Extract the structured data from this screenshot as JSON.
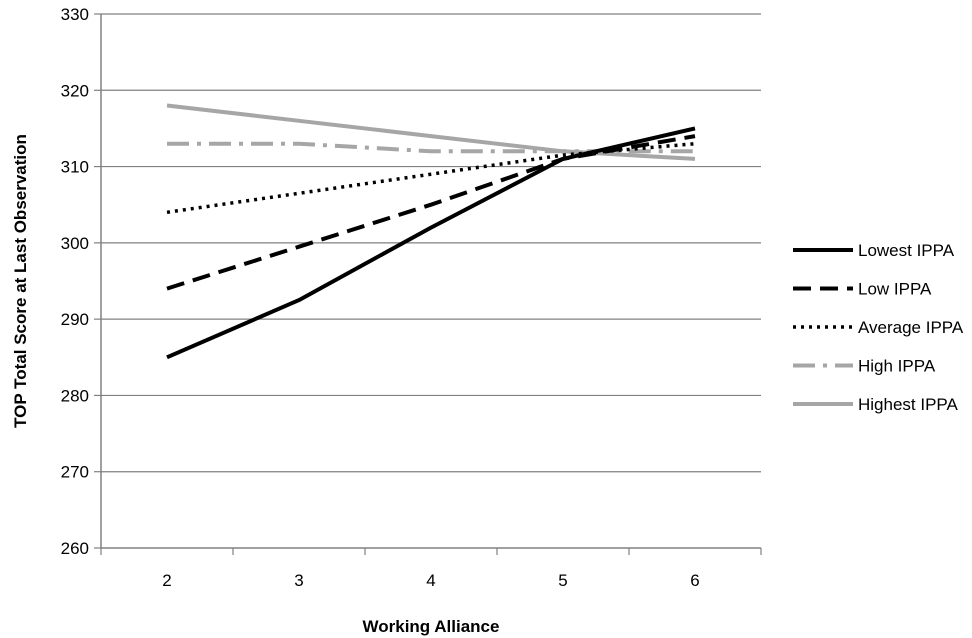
{
  "chart_data": {
    "type": "line",
    "title": "",
    "xlabel": "Working Alliance",
    "ylabel": "TOP Total Score at Last Observation",
    "x": [
      2,
      3,
      4,
      5,
      6
    ],
    "x_tick_labels": [
      "2",
      "3",
      "4",
      "5",
      "6"
    ],
    "ylim": [
      260,
      330
    ],
    "y_ticks": [
      260,
      270,
      280,
      290,
      300,
      310,
      320,
      330
    ],
    "grid": "horizontal",
    "legend_position": "right",
    "series": [
      {
        "name": "Lowest IPPA",
        "values": [
          285,
          292.5,
          302,
          311,
          315
        ],
        "color": "#000000",
        "style": "solid"
      },
      {
        "name": "Low IPPA",
        "values": [
          294,
          299.5,
          305,
          311,
          314
        ],
        "color": "#000000",
        "style": "dashed"
      },
      {
        "name": "Average IPPA",
        "values": [
          304,
          306.5,
          309,
          311.5,
          313
        ],
        "color": "#000000",
        "style": "dotted"
      },
      {
        "name": "High IPPA",
        "values": [
          313,
          313,
          312,
          312,
          312
        ],
        "color": "#a6a6a6",
        "style": "dashdot"
      },
      {
        "name": "Highest IPPA",
        "values": [
          318,
          316,
          314,
          312,
          311
        ],
        "color": "#a6a6a6",
        "style": "solid"
      }
    ]
  }
}
